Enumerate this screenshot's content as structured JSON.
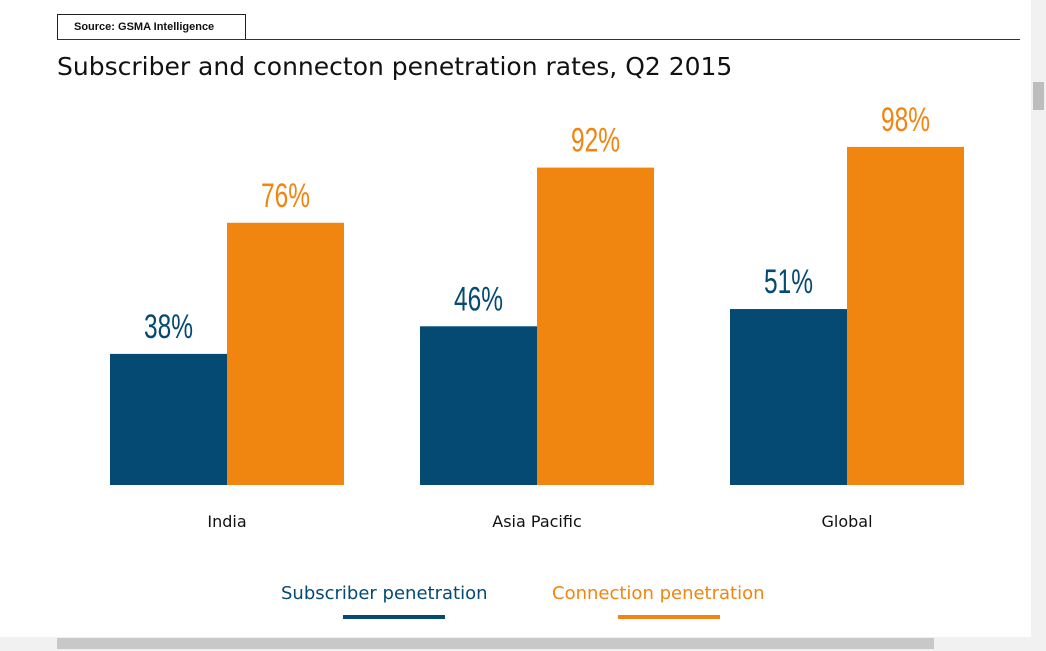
{
  "source": "Source: GSMA Intelligence",
  "title": "Subscriber and connecton penetration rates, Q2 2015",
  "colors": {
    "subscriber": "#044a73",
    "connection": "#f08510",
    "text": "#111111"
  },
  "legend": {
    "subscriber": "Subscriber penetration",
    "connection": "Connection penetration"
  },
  "chart_data": {
    "type": "bar",
    "title": "Subscriber and connecton penetration rates, Q2 2015",
    "categories": [
      "India",
      "Asia Pacific",
      "Global"
    ],
    "series": [
      {
        "name": "Subscriber penetration",
        "values": [
          38,
          46,
          51
        ],
        "labels": [
          "38%",
          "46%",
          "51%"
        ]
      },
      {
        "name": "Connection penetration",
        "values": [
          76,
          92,
          98
        ],
        "labels": [
          "76%",
          "92%",
          "98%"
        ]
      }
    ],
    "xlabel": "",
    "ylabel": "",
    "ylim": [
      0,
      100
    ],
    "grid": false,
    "legend_position": "bottom"
  }
}
